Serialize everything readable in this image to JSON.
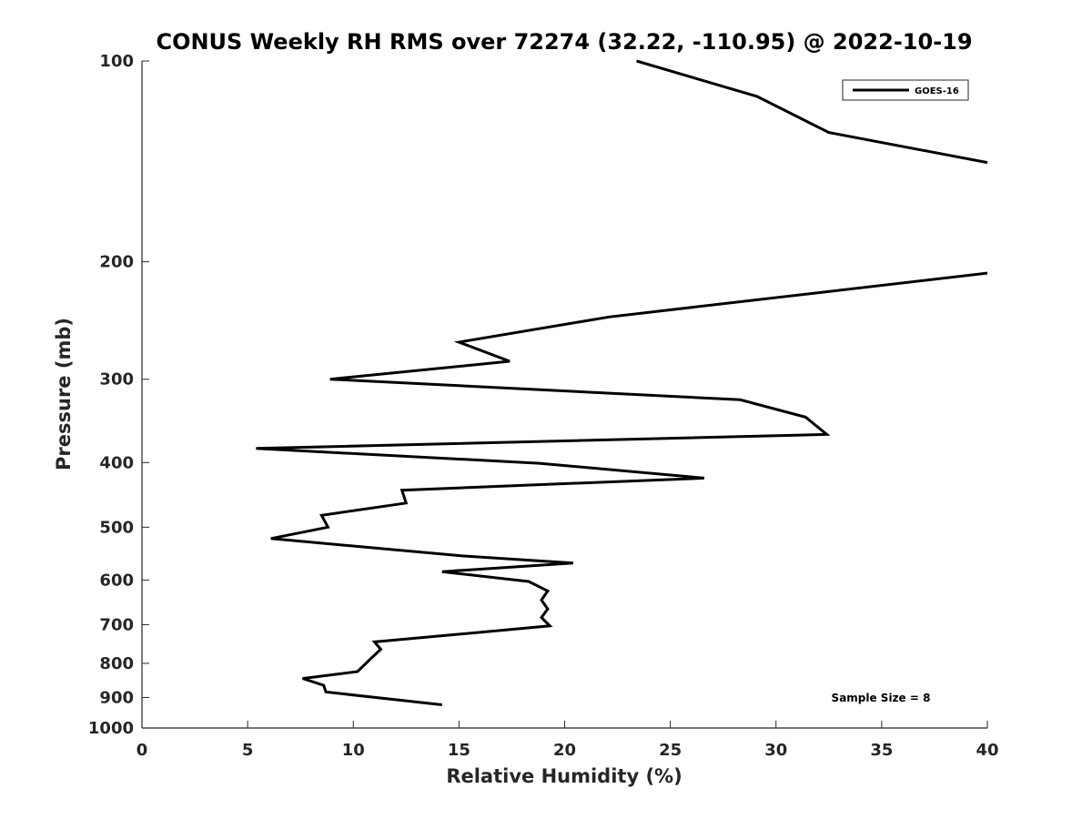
{
  "chart_data": {
    "type": "line",
    "title": "CONUS Weekly RH RMS over 72274 (32.22, -110.95) @ 2022-10-19",
    "xlabel": "Relative Humidity (%)",
    "ylabel": "Pressure (mb)",
    "xlim": [
      0,
      40
    ],
    "ylim": [
      100,
      1000
    ],
    "y_scale": "log",
    "y_reversed": true,
    "grid": false,
    "legend_position": "top-right",
    "x_ticks": [
      "0",
      "5",
      "10",
      "15",
      "20",
      "25",
      "30",
      "35",
      "40"
    ],
    "y_ticks": [
      "100",
      "200",
      "300",
      "400",
      "500",
      "600",
      "700",
      "800",
      "900",
      "1000"
    ],
    "annotation": "Sample Size = 8",
    "series": [
      {
        "name": "GOES-16",
        "color": "#000000",
        "points": [
          [
            23.4,
            100
          ],
          [
            29.1,
            113
          ],
          [
            32.5,
            128
          ],
          [
            40.0,
            142
          ],
          [
            null,
            155
          ],
          [
            40.0,
            208
          ],
          [
            22.1,
            242
          ],
          [
            15.0,
            264
          ],
          [
            17.4,
            282
          ],
          [
            8.9,
            300
          ],
          [
            28.3,
            322
          ],
          [
            31.4,
            342
          ],
          [
            32.4,
            363
          ],
          [
            5.4,
            381
          ],
          [
            18.8,
            401
          ],
          [
            26.6,
            422
          ],
          [
            12.3,
            440
          ],
          [
            12.5,
            460
          ],
          [
            8.5,
            480
          ],
          [
            8.8,
            500
          ],
          [
            6.1,
            520
          ],
          [
            15.1,
            552
          ],
          [
            20.4,
            566
          ],
          [
            14.2,
            583
          ],
          [
            18.3,
            603
          ],
          [
            19.2,
            623
          ],
          [
            18.9,
            643
          ],
          [
            19.2,
            663
          ],
          [
            18.9,
            683
          ],
          [
            19.3,
            703
          ],
          [
            11.0,
            743
          ],
          [
            11.3,
            762
          ],
          [
            10.9,
            783
          ],
          [
            10.2,
            823
          ],
          [
            7.6,
            843
          ],
          [
            8.6,
            863
          ],
          [
            8.7,
            883
          ],
          [
            14.2,
            923
          ]
        ]
      }
    ]
  }
}
